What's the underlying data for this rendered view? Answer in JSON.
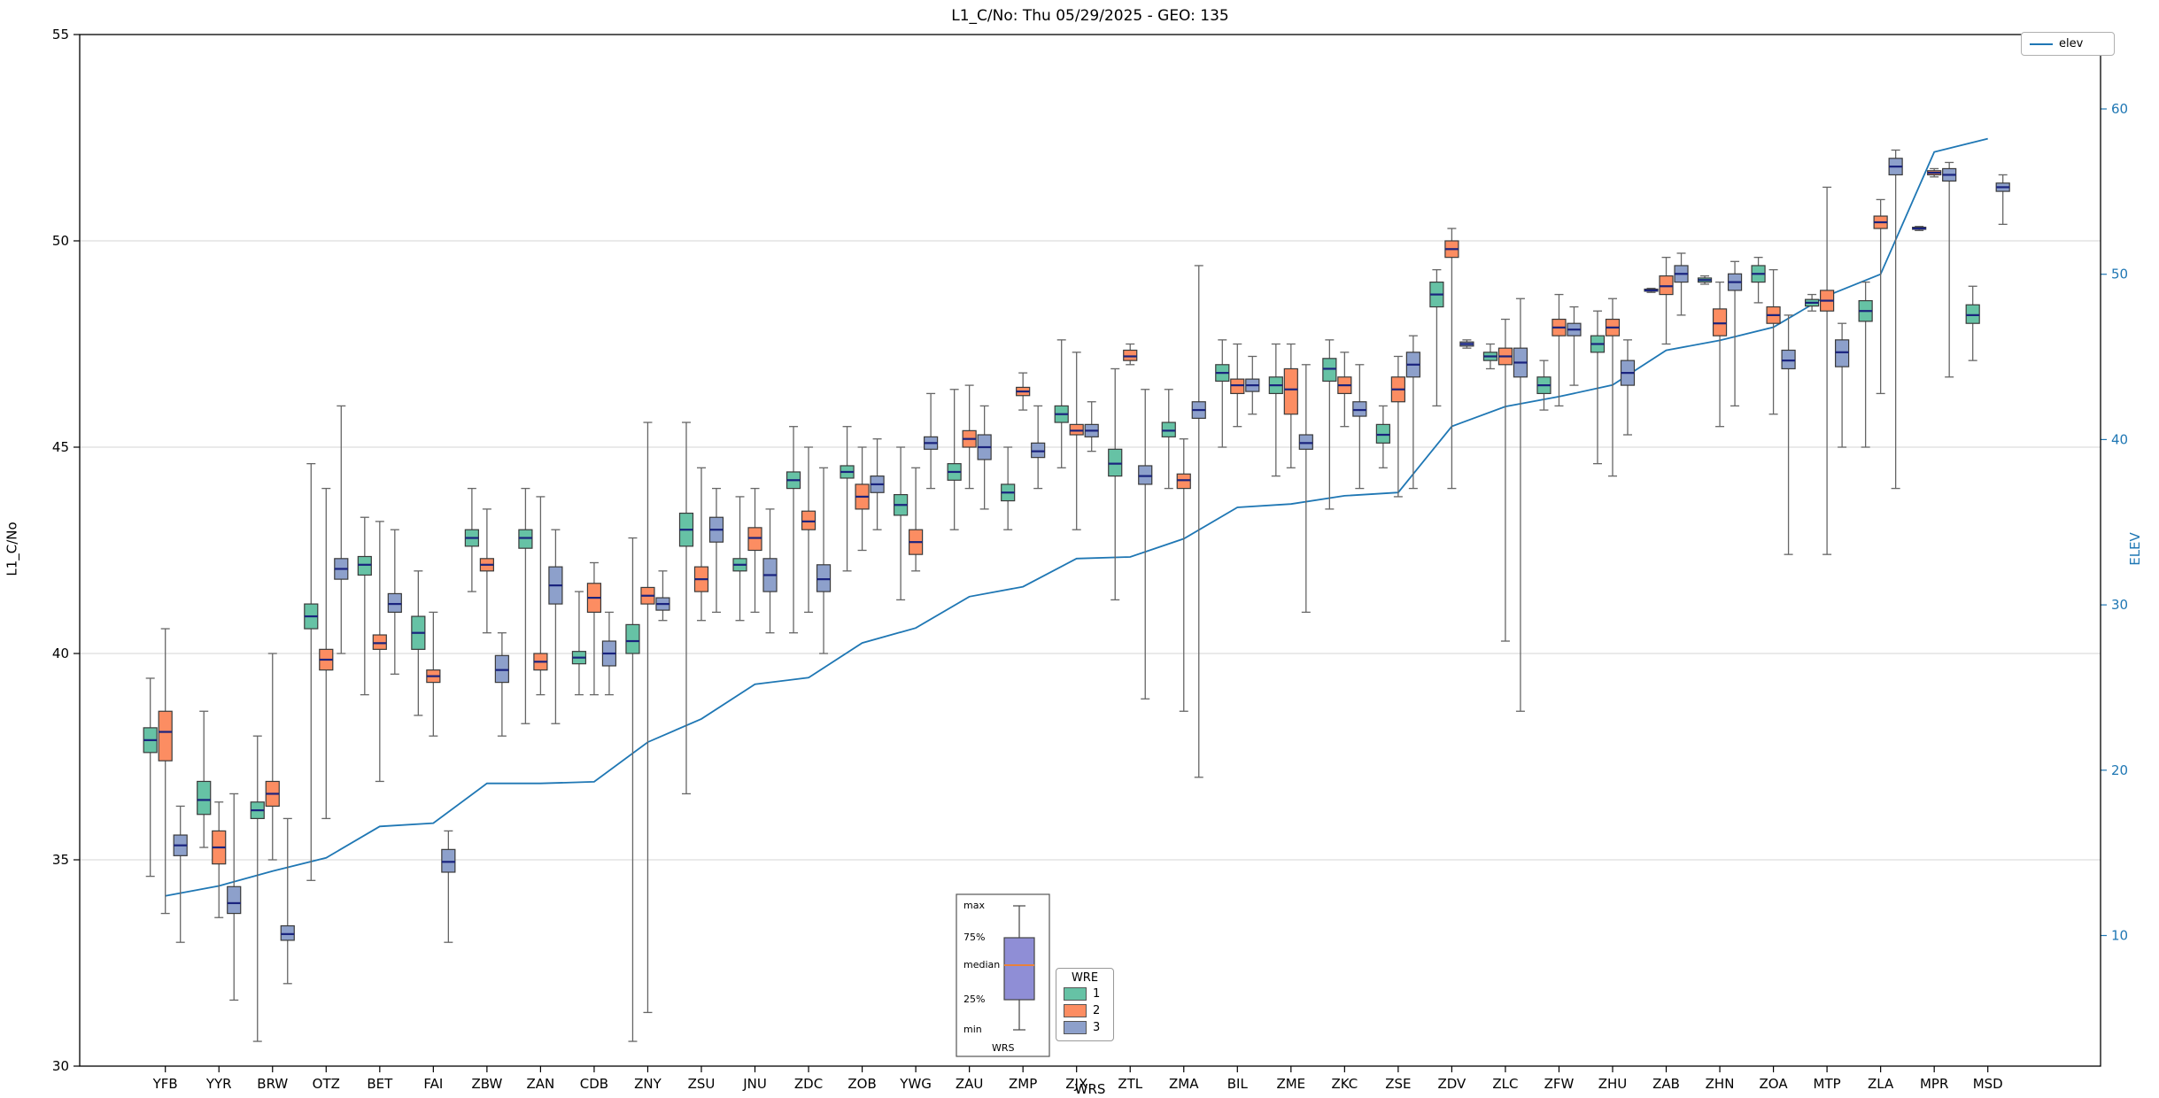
{
  "title": "L1_C/No: Thu 05/29/2025 - GEO: 135",
  "axes": {
    "y_label": "L1_C/No",
    "elev_label": "ELEV",
    "x_label": "WRS"
  },
  "legend": {
    "elev_label": "elev",
    "wre_title": "WRE",
    "wre_items": [
      "1",
      "2",
      "3"
    ]
  },
  "anatomy": {
    "labels": [
      "max",
      "75%",
      "median",
      "25%",
      "min"
    ],
    "xlabel": "WRS",
    "box_color": "#8f8ed6",
    "median_color": "#e8823c",
    "frame_color": "#555555"
  },
  "chart_data": {
    "type": "boxplot",
    "title": "L1_C/No: Thu 05/29/2025 - GEO: 135",
    "xlabel": "WRS",
    "ylabel": "L1_C/No",
    "y2label": "ELEV",
    "ylim": [
      30,
      55
    ],
    "elev_ylim": [
      2.1,
      64.5
    ],
    "left_ticks": [
      30,
      35,
      40,
      45,
      50,
      55
    ],
    "right_ticks": [
      10,
      20,
      30,
      40,
      50,
      60
    ],
    "grid": "horizontal",
    "grid_color": "#d5d5d5",
    "median_color": "#1a237e",
    "whisker_color": "#666666",
    "box_edge_color": "#3a3a3a",
    "categories": [
      "YFB",
      "YYR",
      "BRW",
      "OTZ",
      "BET",
      "FAI",
      "ZBW",
      "ZAN",
      "CDB",
      "ZNY",
      "ZSU",
      "JNU",
      "ZDC",
      "ZOB",
      "YWG",
      "ZAU",
      "ZMP",
      "ZJX",
      "ZTL",
      "ZMA",
      "BIL",
      "ZME",
      "ZKC",
      "ZSE",
      "ZDV",
      "ZLC",
      "ZFW",
      "ZHU",
      "ZAB",
      "ZHN",
      "ZOA",
      "MTP",
      "ZLA",
      "MPR",
      "MSD"
    ],
    "series": [
      {
        "name": "1",
        "color": "#66c2a5",
        "boxes": [
          [
            34.6,
            37.6,
            37.9,
            38.2,
            39.4
          ],
          [
            35.3,
            36.1,
            36.45,
            36.9,
            38.6
          ],
          [
            30.6,
            36.0,
            36.2,
            36.4,
            38.0
          ],
          [
            34.5,
            40.6,
            40.9,
            41.2,
            44.6
          ],
          [
            39.0,
            41.9,
            42.15,
            42.35,
            43.3
          ],
          [
            38.5,
            40.1,
            40.5,
            40.9,
            42.0
          ],
          [
            41.5,
            42.6,
            42.8,
            43.0,
            44.0
          ],
          [
            38.3,
            42.55,
            42.8,
            43.0,
            44.0
          ],
          [
            39.0,
            39.75,
            39.9,
            40.05,
            41.5
          ],
          [
            30.6,
            40.0,
            40.3,
            40.7,
            42.8
          ],
          [
            36.6,
            42.6,
            43.0,
            43.4,
            45.6
          ],
          [
            40.8,
            42.0,
            42.15,
            42.3,
            43.8
          ],
          [
            40.5,
            44.0,
            44.2,
            44.4,
            45.5
          ],
          [
            42.0,
            44.25,
            44.4,
            44.55,
            45.5
          ],
          [
            41.3,
            43.35,
            43.6,
            43.85,
            45.0
          ],
          [
            43.0,
            44.2,
            44.4,
            44.6,
            46.4
          ],
          [
            43.0,
            43.7,
            43.9,
            44.1,
            45.0
          ],
          [
            44.5,
            45.6,
            45.8,
            46.0,
            47.6
          ],
          [
            41.3,
            44.3,
            44.6,
            44.95,
            46.9
          ],
          [
            44.0,
            45.25,
            45.4,
            45.6,
            46.4
          ],
          [
            45.0,
            46.6,
            46.8,
            47.0,
            47.6
          ],
          [
            44.3,
            46.3,
            46.5,
            46.7,
            47.5
          ],
          [
            43.5,
            46.6,
            46.9,
            47.15,
            47.6
          ],
          [
            44.5,
            45.1,
            45.3,
            45.55,
            46.0
          ],
          [
            46.0,
            48.4,
            48.7,
            49.0,
            49.3
          ],
          [
            46.9,
            47.1,
            47.2,
            47.3,
            47.5
          ],
          [
            45.9,
            46.3,
            46.5,
            46.7,
            47.1
          ],
          [
            44.6,
            47.3,
            47.5,
            47.7,
            48.3
          ],
          [
            48.75,
            48.78,
            48.8,
            48.83,
            48.85
          ],
          [
            48.95,
            49.0,
            49.05,
            49.1,
            49.15
          ],
          [
            48.5,
            49.0,
            49.2,
            49.4,
            49.6
          ],
          [
            48.3,
            48.42,
            48.5,
            48.58,
            48.7
          ],
          [
            45.0,
            48.05,
            48.3,
            48.55,
            49.0
          ],
          [
            50.25,
            50.28,
            50.3,
            50.33,
            50.35
          ],
          [
            47.1,
            48.0,
            48.2,
            48.45,
            48.9
          ]
        ]
      },
      {
        "name": "2",
        "color": "#fc8d62",
        "boxes": [
          [
            33.7,
            37.4,
            38.1,
            38.6,
            40.6
          ],
          [
            33.6,
            34.9,
            35.3,
            35.7,
            36.4
          ],
          [
            35.0,
            36.3,
            36.6,
            36.9,
            40.0
          ],
          [
            36.0,
            39.6,
            39.85,
            40.1,
            44.0
          ],
          [
            36.9,
            40.1,
            40.25,
            40.45,
            43.2
          ],
          [
            38.0,
            39.3,
            39.45,
            39.6,
            41.0
          ],
          [
            40.5,
            42.0,
            42.15,
            42.3,
            43.5
          ],
          [
            39.0,
            39.6,
            39.8,
            40.0,
            43.8
          ],
          [
            39.0,
            41.0,
            41.35,
            41.7,
            42.2
          ],
          [
            31.3,
            41.2,
            41.4,
            41.6,
            45.6
          ],
          [
            40.8,
            41.5,
            41.8,
            42.1,
            44.5
          ],
          [
            41.0,
            42.5,
            42.8,
            43.05,
            44.0
          ],
          [
            41.0,
            43.0,
            43.2,
            43.45,
            45.0
          ],
          [
            42.5,
            43.5,
            43.8,
            44.1,
            45.0
          ],
          [
            42.0,
            42.4,
            42.7,
            43.0,
            44.5
          ],
          [
            44.0,
            45.0,
            45.2,
            45.4,
            46.5
          ],
          [
            45.9,
            46.25,
            46.35,
            46.45,
            46.8
          ],
          [
            43.0,
            45.3,
            45.4,
            45.55,
            47.3
          ],
          [
            47.0,
            47.1,
            47.2,
            47.35,
            47.5
          ],
          [
            38.6,
            44.0,
            44.2,
            44.35,
            45.2
          ],
          [
            45.5,
            46.3,
            46.5,
            46.65,
            47.5
          ],
          [
            44.5,
            45.8,
            46.4,
            46.9,
            47.5
          ],
          [
            45.5,
            46.3,
            46.5,
            46.7,
            47.3
          ],
          [
            43.8,
            46.1,
            46.4,
            46.7,
            47.2
          ],
          [
            44.0,
            49.6,
            49.8,
            50.0,
            50.3
          ],
          [
            40.3,
            47.0,
            47.2,
            47.4,
            48.1
          ],
          [
            46.0,
            47.7,
            47.9,
            48.1,
            48.7
          ],
          [
            44.3,
            47.7,
            47.9,
            48.1,
            48.6
          ],
          [
            47.5,
            48.7,
            48.9,
            49.15,
            49.6
          ],
          [
            45.5,
            47.7,
            48.0,
            48.35,
            49.0
          ],
          [
            45.8,
            48.0,
            48.2,
            48.4,
            49.3
          ],
          [
            42.4,
            48.3,
            48.55,
            48.8,
            51.3
          ],
          [
            46.3,
            50.3,
            50.45,
            50.6,
            51.0
          ],
          [
            51.55,
            51.6,
            51.65,
            51.7,
            51.75
          ],
          null
        ]
      },
      {
        "name": "3",
        "color": "#8da0cb",
        "boxes": [
          [
            33.0,
            35.1,
            35.35,
            35.6,
            36.3
          ],
          [
            31.6,
            33.7,
            33.95,
            34.35,
            36.6
          ],
          [
            32.0,
            33.05,
            33.2,
            33.4,
            36.0
          ],
          [
            40.0,
            41.8,
            42.05,
            42.3,
            46.0
          ],
          [
            39.5,
            41.0,
            41.2,
            41.45,
            43.0
          ],
          [
            33.0,
            34.7,
            34.95,
            35.25,
            35.7
          ],
          [
            38.0,
            39.3,
            39.6,
            39.95,
            40.5
          ],
          [
            38.3,
            41.2,
            41.65,
            42.1,
            43.0
          ],
          [
            39.0,
            39.7,
            40.0,
            40.3,
            41.0
          ],
          [
            40.8,
            41.05,
            41.2,
            41.35,
            42.0
          ],
          [
            41.0,
            42.7,
            43.0,
            43.3,
            44.0
          ],
          [
            40.5,
            41.5,
            41.9,
            42.3,
            43.5
          ],
          [
            40.0,
            41.5,
            41.8,
            42.15,
            44.5
          ],
          [
            43.0,
            43.9,
            44.1,
            44.3,
            45.2
          ],
          [
            44.0,
            44.95,
            45.1,
            45.25,
            46.3
          ],
          [
            43.5,
            44.7,
            45.0,
            45.3,
            46.0
          ],
          [
            44.0,
            44.75,
            44.9,
            45.1,
            46.0
          ],
          [
            44.9,
            45.25,
            45.4,
            45.55,
            46.1
          ],
          [
            38.9,
            44.1,
            44.3,
            44.55,
            46.4
          ],
          [
            37.0,
            45.7,
            45.9,
            46.1,
            49.4
          ],
          [
            45.8,
            46.35,
            46.5,
            46.65,
            47.2
          ],
          [
            41.0,
            44.95,
            45.1,
            45.3,
            47.0
          ],
          [
            44.0,
            45.75,
            45.9,
            46.1,
            47.0
          ],
          [
            44.0,
            46.7,
            47.0,
            47.3,
            47.7
          ],
          [
            47.4,
            47.45,
            47.5,
            47.55,
            47.6
          ],
          [
            38.6,
            46.7,
            47.05,
            47.4,
            48.6
          ],
          [
            46.5,
            47.7,
            47.85,
            48.0,
            48.4
          ],
          [
            45.3,
            46.5,
            46.8,
            47.1,
            47.6
          ],
          [
            48.2,
            49.0,
            49.2,
            49.4,
            49.7
          ],
          [
            46.0,
            48.8,
            49.0,
            49.2,
            49.5
          ],
          [
            42.4,
            46.9,
            47.1,
            47.35,
            48.2
          ],
          [
            45.0,
            46.95,
            47.3,
            47.6,
            48.0
          ],
          [
            44.0,
            51.6,
            51.8,
            52.0,
            52.2
          ],
          [
            46.7,
            51.45,
            51.6,
            51.75,
            51.9
          ],
          [
            50.4,
            51.2,
            51.3,
            51.4,
            51.6
          ]
        ]
      }
    ],
    "elev": {
      "name": "elev",
      "color": "#1f77b4",
      "values": [
        12.4,
        13.0,
        13.9,
        14.7,
        16.6,
        16.8,
        19.2,
        19.2,
        19.3,
        21.7,
        23.1,
        25.2,
        25.6,
        27.7,
        28.6,
        30.5,
        31.1,
        32.8,
        32.9,
        34.0,
        35.9,
        36.1,
        36.6,
        36.8,
        40.8,
        42.0,
        42.6,
        43.3,
        45.4,
        46.0,
        46.8,
        48.7,
        50.0,
        57.4,
        58.2
      ]
    }
  }
}
